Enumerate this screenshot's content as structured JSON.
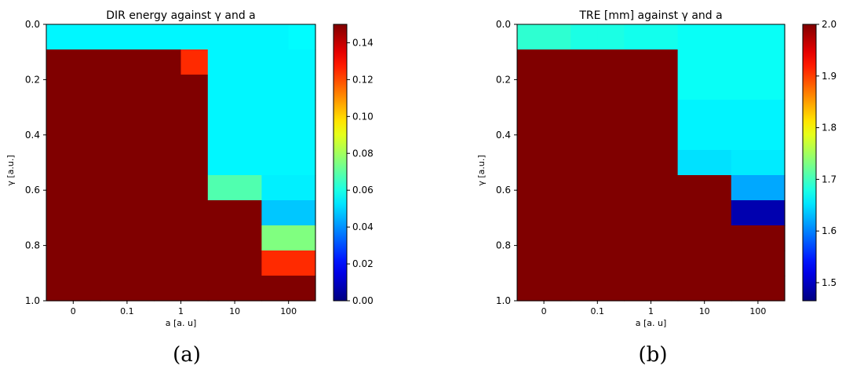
{
  "chart_data": [
    {
      "type": "heatmap",
      "title": "DIR energy against γ and a",
      "xlabel": "a [a. u]",
      "ylabel": "γ [a.u.]",
      "caption": "(a)",
      "x_categories": [
        "0",
        "0.1",
        "1",
        "10",
        "100"
      ],
      "y_range": [
        0.0,
        1.0
      ],
      "y_ticks": [
        "0.0",
        "0.2",
        "0.4",
        "0.6",
        "0.8",
        "1.0"
      ],
      "y_tick_values": [
        0.0,
        0.2,
        0.4,
        0.6,
        0.8,
        1.0
      ],
      "colormap": "jet",
      "color_range": [
        0.0,
        0.15
      ],
      "colorbar_ticks": [
        "0.00",
        "0.02",
        "0.04",
        "0.06",
        "0.08",
        "0.10",
        "0.12",
        "0.14"
      ],
      "colorbar_tick_values": [
        0.0,
        0.02,
        0.04,
        0.06,
        0.08,
        0.1,
        0.12,
        0.14
      ],
      "grid": false,
      "values": [
        [
          0.055,
          0.055,
          0.055,
          0.055,
          0.055,
          0.055,
          0.055,
          0.055,
          0.055,
          0.056
        ],
        [
          0.15,
          0.15,
          0.15,
          0.15,
          0.15,
          0.125,
          0.055,
          0.055,
          0.055,
          0.055
        ],
        [
          0.15,
          0.15,
          0.15,
          0.15,
          0.15,
          0.15,
          0.055,
          0.055,
          0.055,
          0.055
        ],
        [
          0.15,
          0.15,
          0.15,
          0.15,
          0.15,
          0.15,
          0.055,
          0.055,
          0.055,
          0.055
        ],
        [
          0.15,
          0.15,
          0.15,
          0.15,
          0.15,
          0.15,
          0.055,
          0.055,
          0.055,
          0.055
        ],
        [
          0.15,
          0.15,
          0.15,
          0.15,
          0.15,
          0.15,
          0.055,
          0.055,
          0.055,
          0.055
        ],
        [
          0.15,
          0.15,
          0.15,
          0.15,
          0.15,
          0.15,
          0.068,
          0.068,
          0.054,
          0.054
        ],
        [
          0.15,
          0.15,
          0.15,
          0.15,
          0.15,
          0.15,
          0.15,
          0.15,
          0.048,
          0.048
        ],
        [
          0.15,
          0.15,
          0.15,
          0.15,
          0.15,
          0.15,
          0.15,
          0.15,
          0.075,
          0.075
        ],
        [
          0.15,
          0.15,
          0.15,
          0.15,
          0.15,
          0.15,
          0.15,
          0.15,
          0.125,
          0.125
        ],
        [
          0.15,
          0.15,
          0.15,
          0.15,
          0.15,
          0.15,
          0.15,
          0.15,
          0.15,
          0.15
        ]
      ]
    },
    {
      "type": "heatmap",
      "title": "TRE [mm] against γ and a",
      "xlabel": "a [a. u]",
      "ylabel": "γ [a.u.]",
      "caption": "(b)",
      "x_categories": [
        "0",
        "0.1",
        "1",
        "10",
        "100"
      ],
      "y_range": [
        0.0,
        1.0
      ],
      "y_ticks": [
        "0.0",
        "0.2",
        "0.4",
        "0.6",
        "0.8",
        "1.0"
      ],
      "y_tick_values": [
        0.0,
        0.2,
        0.4,
        0.6,
        0.8,
        1.0
      ],
      "colormap": "jet",
      "color_range": [
        1.465,
        2.0
      ],
      "colorbar_ticks": [
        "1.5",
        "1.6",
        "1.7",
        "1.8",
        "1.9",
        "2.0"
      ],
      "colorbar_tick_values": [
        1.5,
        1.6,
        1.7,
        1.8,
        1.9,
        2.0
      ],
      "grid": false,
      "values": [
        [
          1.69,
          1.69,
          1.68,
          1.68,
          1.675,
          1.675,
          1.67,
          1.67,
          1.67,
          1.67
        ],
        [
          2.0,
          2.0,
          2.0,
          2.0,
          2.0,
          2.0,
          1.67,
          1.67,
          1.67,
          1.67
        ],
        [
          2.0,
          2.0,
          2.0,
          2.0,
          2.0,
          2.0,
          1.67,
          1.67,
          1.67,
          1.67
        ],
        [
          2.0,
          2.0,
          2.0,
          2.0,
          2.0,
          2.0,
          1.66,
          1.66,
          1.66,
          1.66
        ],
        [
          2.0,
          2.0,
          2.0,
          2.0,
          2.0,
          2.0,
          1.66,
          1.66,
          1.66,
          1.66
        ],
        [
          2.0,
          2.0,
          2.0,
          2.0,
          2.0,
          2.0,
          1.65,
          1.65,
          1.655,
          1.655
        ],
        [
          2.0,
          2.0,
          2.0,
          2.0,
          2.0,
          2.0,
          2.0,
          2.0,
          1.62,
          1.62
        ],
        [
          2.0,
          2.0,
          2.0,
          2.0,
          2.0,
          2.0,
          2.0,
          2.0,
          1.49,
          1.49
        ],
        [
          2.0,
          2.0,
          2.0,
          2.0,
          2.0,
          2.0,
          2.0,
          2.0,
          2.0,
          2.0
        ],
        [
          2.0,
          2.0,
          2.0,
          2.0,
          2.0,
          2.0,
          2.0,
          2.0,
          2.0,
          2.0
        ],
        [
          2.0,
          2.0,
          2.0,
          2.0,
          2.0,
          2.0,
          2.0,
          2.0,
          2.0,
          2.0
        ]
      ]
    }
  ]
}
